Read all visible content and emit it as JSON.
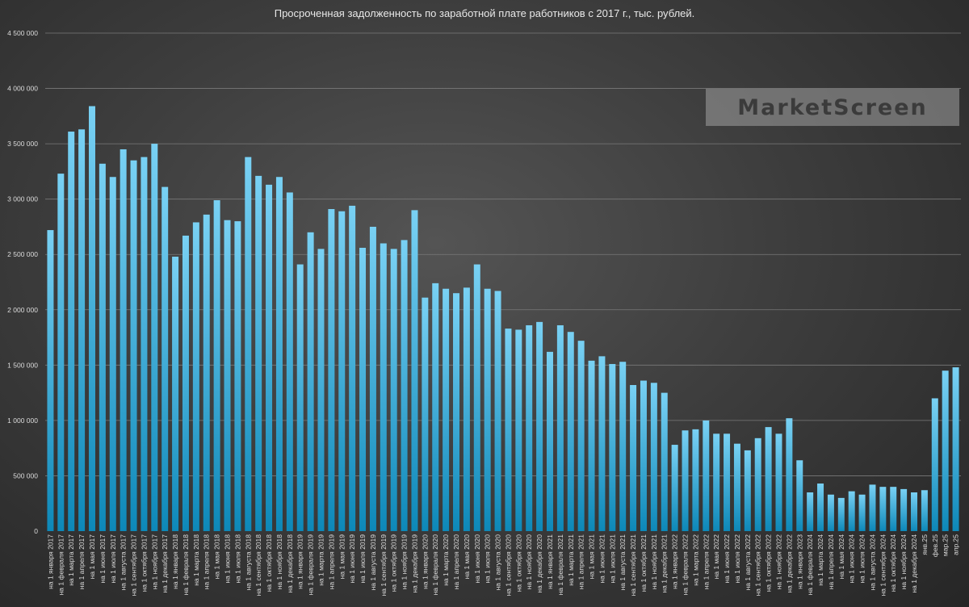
{
  "watermark": "MarketScreen",
  "chart_data": {
    "type": "bar",
    "title": "Просроченная задолженность по заработной плате работников с 2017 г., тыс. рублей.",
    "xlabel": "",
    "ylabel": "",
    "ylim": [
      0,
      4500000
    ],
    "yticks": [
      0,
      500000,
      1000000,
      1500000,
      2000000,
      2500000,
      3000000,
      3500000,
      4000000,
      4500000
    ],
    "ytick_labels": [
      "0",
      "500 000",
      "1 000 000",
      "1 500 000",
      "2 000 000",
      "2 500 000",
      "3 000 000",
      "3 500 000",
      "4 000 000",
      "4 500 000"
    ],
    "grid": true,
    "colors": {
      "bar_top": "#79d1f4",
      "bar_bottom": "#0d88b8",
      "grid": "#7a7a7a",
      "text": "#dcdcdc"
    },
    "categories": [
      "на 1 января 2017",
      "на 1 февраля 2017",
      "на 1 марта 2017",
      "на 1 апреля 2017",
      "на 1 мая 2017",
      "на 1 июня 2017",
      "на 1 июля 2017",
      "на 1 августа 2017",
      "на 1 сентября 2017",
      "на 1 октября 2017",
      "на 1 ноября 2017",
      "на 1 декабря 2017",
      "на 1 января 2018",
      "на 1 февраля 2018",
      "на 1 марта 2018",
      "на 1 апреля 2018",
      "на 1 мая 2018",
      "на 1 июня 2018",
      "на 1 июля 2018",
      "на 1 августа 2018",
      "на 1 сентября 2018",
      "на 1 октября 2018",
      "на 1 ноября 2018",
      "на 1 декабря 2018",
      "на 1 января 2019",
      "на 1 февраля 2019",
      "на 1 марта 2019",
      "на 1 апреля 2019",
      "на 1 мая 2019",
      "на 1 июня 2019",
      "на 1 июля 2019",
      "на 1 августа 2019",
      "на 1 сентября 2019",
      "на 1 октября 2019",
      "на 1 ноября 2019",
      "на 1 декабря 2019",
      "на 1 января 2020",
      "на 1 февраля 2020",
      "на 1 марта 2020",
      "на 1 апреля 2020",
      "на 1 мая 2020",
      "на 1 июня 2020",
      "на 1 июля 2020",
      "на 1 августа 2020",
      "на 1 сентября 2020",
      "на 1 октября 2020",
      "на 1 ноября 2020",
      "на 1 декабря 2020",
      "на 1 января 2021",
      "на 1 февраля 2021",
      "на 1 марта 2021",
      "на 1 апреля 2021",
      "на 1 мая 2021",
      "на 1 июня 2021",
      "на 1 июля 2021",
      "на 1 августа 2021",
      "на 1 сентября 2021",
      "на 1 октября 2021",
      "на 1 ноября 2021",
      "на 1 декабря 2021",
      "на 1 января 2022",
      "на 1 февраля 2022",
      "на 1 марта 2022",
      "на 1 апреля 2022",
      "на 1 мая 2022",
      "на 1 июня 2022",
      "на 1 июля 2022",
      "на 1 августа 2022",
      "на 1 сентября 2022",
      "на 1 октября 2022",
      "на 1 ноября 2022",
      "на 1 декабря 2022",
      "на 1 января 2023",
      "на 1 февраля 2024",
      "на 1 марта 2024",
      "на 1 апреля 2024",
      "на 1 мая 2024",
      "на 1 июня 2024",
      "на 1 июля 2024",
      "на 1 августа 2024",
      "на 1 сентября 2024",
      "на 1 октября 2024",
      "на 1 ноября 2024",
      "на 1 декабря 2024",
      "янв.25",
      "фев.25",
      "мар.25",
      "апр.25"
    ],
    "values": [
      2720000,
      3230000,
      3610000,
      3630000,
      3840000,
      3320000,
      3200000,
      3450000,
      3350000,
      3380000,
      3500000,
      3110000,
      2480000,
      2670000,
      2790000,
      2860000,
      2990000,
      2810000,
      2800000,
      3380000,
      3210000,
      3130000,
      3200000,
      3060000,
      2410000,
      2700000,
      2550000,
      2910000,
      2890000,
      2940000,
      2560000,
      2750000,
      2600000,
      2550000,
      2630000,
      2900000,
      2110000,
      2240000,
      2190000,
      2150000,
      2200000,
      2410000,
      2190000,
      2170000,
      1830000,
      1820000,
      1860000,
      1890000,
      1620000,
      1860000,
      1800000,
      1720000,
      1540000,
      1580000,
      1510000,
      1530000,
      1320000,
      1360000,
      1340000,
      1250000,
      780000,
      910000,
      920000,
      1000000,
      880000,
      880000,
      790000,
      730000,
      840000,
      940000,
      880000,
      1020000,
      640000,
      350000,
      430000,
      330000,
      300000,
      360000,
      330000,
      420000,
      400000,
      400000,
      380000,
      350000,
      370000,
      1200000,
      1450000,
      1480000
    ]
  }
}
